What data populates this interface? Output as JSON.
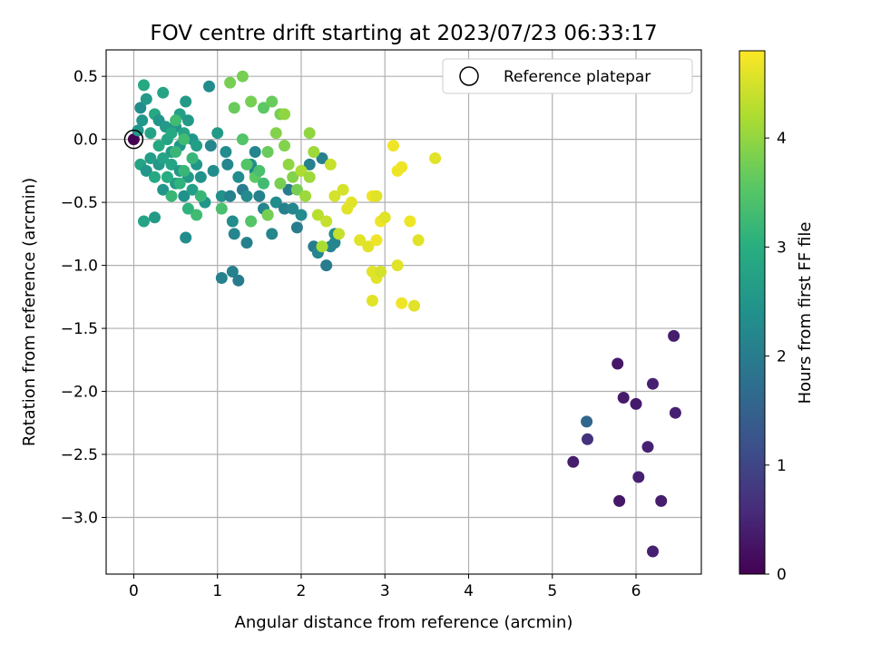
{
  "chart_data": {
    "type": "scatter",
    "title": "FOV centre drift starting at 2023/07/23 06:33:17",
    "xlabel": "Angular distance from reference (arcmin)",
    "ylabel": "Rotation from reference (arcmin)",
    "xlim": [
      -0.33,
      6.78
    ],
    "ylim": [
      -3.45,
      0.71
    ],
    "x_ticks": [
      0,
      1,
      2,
      3,
      4,
      5,
      6
    ],
    "y_ticks": [
      0.5,
      0.0,
      -0.5,
      -1.0,
      -1.5,
      -2.0,
      -2.5,
      -3.0
    ],
    "x_tick_labels": [
      "0",
      "1",
      "2",
      "3",
      "4",
      "5",
      "6"
    ],
    "y_tick_labels": [
      "0.5",
      "0.0",
      "−0.5",
      "−1.0",
      "−1.5",
      "−2.0",
      "−2.5",
      "−3.0"
    ],
    "grid": true,
    "legend": {
      "position": "upper-right",
      "label": "Reference platepar"
    },
    "colorbar": {
      "label": "Hours from first FF file",
      "colormap": "viridis",
      "range": [
        0,
        4.8
      ],
      "ticks": [
        0,
        1,
        2,
        3,
        4
      ],
      "tick_labels": [
        "0",
        "1",
        "2",
        "3",
        "4"
      ]
    },
    "reference_point": {
      "x": 0.0,
      "y": 0.0
    },
    "points": [
      [
        0.0,
        0.0,
        0.0
      ],
      [
        5.25,
        -2.56,
        0.4
      ],
      [
        5.42,
        -2.38,
        0.7
      ],
      [
        5.41,
        -2.24,
        1.6
      ],
      [
        5.78,
        -1.78,
        0.3
      ],
      [
        5.8,
        -2.87,
        0.3
      ],
      [
        5.85,
        -2.05,
        0.35
      ],
      [
        6.0,
        -2.1,
        0.35
      ],
      [
        6.03,
        -2.68,
        0.45
      ],
      [
        6.14,
        -2.44,
        0.45
      ],
      [
        6.2,
        -1.94,
        0.45
      ],
      [
        6.2,
        -3.27,
        0.45
      ],
      [
        6.3,
        -2.87,
        0.4
      ],
      [
        6.45,
        -1.56,
        0.4
      ],
      [
        6.47,
        -2.17,
        0.45
      ],
      [
        0.05,
        0.07,
        2.5
      ],
      [
        0.08,
        0.25,
        2.3
      ],
      [
        0.12,
        0.43,
        2.9
      ],
      [
        0.15,
        0.32,
        2.6
      ],
      [
        0.1,
        0.15,
        2.5
      ],
      [
        0.2,
        0.05,
        2.8
      ],
      [
        0.25,
        0.2,
        2.9
      ],
      [
        0.3,
        0.15,
        2.5
      ],
      [
        0.35,
        0.37,
        2.8
      ],
      [
        0.38,
        0.1,
        2.6
      ],
      [
        0.4,
        0.0,
        2.8
      ],
      [
        0.45,
        -0.1,
        2.6
      ],
      [
        0.5,
        0.1,
        2.5
      ],
      [
        0.55,
        0.2,
        2.7
      ],
      [
        0.6,
        0.05,
        2.8
      ],
      [
        0.65,
        0.15,
        2.6
      ],
      [
        0.7,
        0.0,
        2.5
      ],
      [
        0.75,
        -0.05,
        2.7
      ],
      [
        0.62,
        0.3,
        2.6
      ],
      [
        0.08,
        -0.2,
        2.8
      ],
      [
        0.15,
        -0.25,
        2.5
      ],
      [
        0.2,
        -0.15,
        2.7
      ],
      [
        0.25,
        -0.3,
        2.9
      ],
      [
        0.3,
        -0.2,
        2.6
      ],
      [
        0.35,
        -0.4,
        2.5
      ],
      [
        0.4,
        -0.3,
        2.7
      ],
      [
        0.45,
        -0.2,
        2.8
      ],
      [
        0.5,
        -0.35,
        2.6
      ],
      [
        0.55,
        -0.25,
        2.5
      ],
      [
        0.6,
        -0.45,
        2.4
      ],
      [
        0.65,
        -0.3,
        2.6
      ],
      [
        0.7,
        -0.4,
        2.7
      ],
      [
        0.75,
        -0.2,
        2.5
      ],
      [
        0.8,
        -0.3,
        2.4
      ],
      [
        0.85,
        -0.5,
        2.5
      ],
      [
        0.3,
        -0.05,
        2.9
      ],
      [
        0.35,
        -0.15,
        2.8
      ],
      [
        0.45,
        0.05,
        2.9
      ],
      [
        0.55,
        -0.05,
        2.5
      ],
      [
        0.12,
        -0.65,
        2.8
      ],
      [
        0.25,
        -0.62,
        2.6
      ],
      [
        0.62,
        -0.78,
        2.3
      ],
      [
        0.9,
        0.42,
        2.3
      ],
      [
        0.92,
        -0.05,
        2.2
      ],
      [
        0.95,
        -0.25,
        2.3
      ],
      [
        1.0,
        0.05,
        2.6
      ],
      [
        1.05,
        -0.45,
        2.4
      ],
      [
        1.1,
        -0.1,
        2.3
      ],
      [
        1.12,
        -0.2,
        2.2
      ],
      [
        1.15,
        -0.45,
        2.1
      ],
      [
        1.18,
        -0.65,
        2.3
      ],
      [
        1.2,
        -0.75,
        2.2
      ],
      [
        1.25,
        -0.3,
        2.3
      ],
      [
        1.3,
        -0.4,
        2.0
      ],
      [
        1.35,
        -0.45,
        2.3
      ],
      [
        1.4,
        -0.2,
        2.4
      ],
      [
        1.45,
        -0.25,
        2.2
      ],
      [
        1.5,
        -0.45,
        2.1
      ],
      [
        1.55,
        -0.55,
        2.2
      ],
      [
        1.6,
        -0.6,
        2.3
      ],
      [
        1.65,
        -0.75,
        2.2
      ],
      [
        1.05,
        -1.1,
        2.1
      ],
      [
        1.18,
        -1.05,
        2.1
      ],
      [
        1.25,
        -1.12,
        2.0
      ],
      [
        1.35,
        -0.82,
        2.1
      ],
      [
        1.45,
        -0.1,
        2.2
      ],
      [
        1.7,
        -0.5,
        2.3
      ],
      [
        1.8,
        -0.55,
        2.1
      ],
      [
        1.85,
        -0.4,
        2.0
      ],
      [
        1.9,
        -0.55,
        2.2
      ],
      [
        1.95,
        -0.7,
        2.0
      ],
      [
        2.0,
        -0.6,
        2.3
      ],
      [
        2.1,
        -0.2,
        2.1
      ],
      [
        2.15,
        -0.85,
        2.0
      ],
      [
        2.2,
        -0.9,
        2.2
      ],
      [
        2.25,
        -0.15,
        2.1
      ],
      [
        2.3,
        -1.0,
        2.0
      ],
      [
        2.35,
        -0.85,
        2.2
      ],
      [
        2.4,
        -0.75,
        2.3
      ],
      [
        2.4,
        -0.82,
        2.2
      ],
      [
        1.15,
        0.45,
        3.8
      ],
      [
        1.2,
        0.25,
        3.7
      ],
      [
        1.3,
        0.5,
        3.8
      ],
      [
        1.4,
        0.3,
        3.8
      ],
      [
        1.55,
        0.25,
        3.6
      ],
      [
        1.6,
        -0.1,
        3.7
      ],
      [
        1.65,
        0.3,
        3.7
      ],
      [
        1.7,
        0.05,
        3.9
      ],
      [
        1.75,
        0.2,
        3.8
      ],
      [
        1.8,
        0.2,
        4.0
      ],
      [
        1.3,
        0.0,
        3.5
      ],
      [
        1.35,
        -0.2,
        3.5
      ],
      [
        1.45,
        -0.3,
        3.6
      ],
      [
        1.5,
        -0.25,
        3.4
      ],
      [
        1.55,
        -0.35,
        3.3
      ],
      [
        1.6,
        -0.6,
        3.8
      ],
      [
        1.4,
        -0.65,
        3.5
      ],
      [
        1.75,
        -0.35,
        3.8
      ],
      [
        1.8,
        -0.05,
        3.9
      ],
      [
        1.85,
        -0.2,
        4.0
      ],
      [
        1.9,
        -0.3,
        3.9
      ],
      [
        1.95,
        -0.4,
        3.8
      ],
      [
        2.0,
        -0.25,
        4.2
      ],
      [
        2.05,
        -0.45,
        4.1
      ],
      [
        2.1,
        0.05,
        4.0
      ],
      [
        2.1,
        -0.3,
        4.1
      ],
      [
        2.15,
        -0.1,
        4.1
      ],
      [
        2.2,
        -0.6,
        4.3
      ],
      [
        2.25,
        -0.85,
        4.2
      ],
      [
        2.3,
        -0.65,
        4.4
      ],
      [
        2.35,
        -0.2,
        4.4
      ],
      [
        2.4,
        -0.45,
        4.5
      ],
      [
        2.45,
        -0.75,
        4.4
      ],
      [
        2.5,
        -0.4,
        4.5
      ],
      [
        2.55,
        -0.55,
        4.6
      ],
      [
        2.6,
        -0.5,
        4.6
      ],
      [
        2.7,
        -0.8,
        4.6
      ],
      [
        2.8,
        -0.85,
        4.6
      ],
      [
        2.85,
        -0.45,
        4.7
      ],
      [
        2.9,
        -0.8,
        4.7
      ],
      [
        2.95,
        -0.65,
        4.7
      ],
      [
        3.0,
        -0.62,
        4.6
      ],
      [
        3.1,
        -0.05,
        4.7
      ],
      [
        3.15,
        -0.25,
        4.7
      ],
      [
        3.2,
        -0.22,
        4.7
      ],
      [
        3.3,
        -0.65,
        4.7
      ],
      [
        3.4,
        -0.8,
        4.6
      ],
      [
        3.6,
        -0.15,
        4.6
      ],
      [
        2.85,
        -1.05,
        4.6
      ],
      [
        2.9,
        -1.1,
        4.6
      ],
      [
        2.85,
        -1.28,
        4.6
      ],
      [
        3.15,
        -1.0,
        4.6
      ],
      [
        3.2,
        -1.3,
        4.7
      ],
      [
        3.35,
        -1.32,
        4.6
      ],
      [
        2.95,
        -1.05,
        4.5
      ],
      [
        2.9,
        -0.45,
        4.6
      ],
      [
        0.65,
        -0.55,
        3.1
      ],
      [
        0.75,
        -0.6,
        3.3
      ],
      [
        0.8,
        -0.45,
        3.2
      ],
      [
        0.4,
        -0.3,
        3.0
      ],
      [
        0.45,
        -0.45,
        3.2
      ],
      [
        0.55,
        -0.35,
        3.1
      ],
      [
        0.6,
        -0.25,
        3.2
      ],
      [
        0.7,
        -0.15,
        3.2
      ],
      [
        1.05,
        -0.55,
        3.4
      ],
      [
        0.5,
        0.15,
        3.3
      ],
      [
        0.6,
        0.0,
        3.3
      ],
      [
        0.5,
        -0.1,
        3.2
      ]
    ]
  }
}
